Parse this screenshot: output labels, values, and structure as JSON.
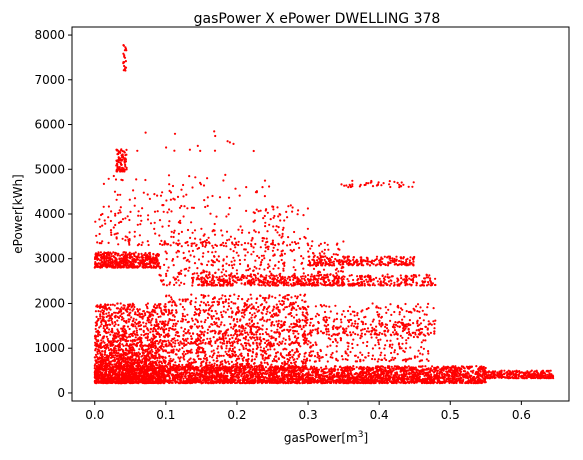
{
  "chart_data": {
    "type": "scatter",
    "title": "gasPower X ePower DWELLING 378",
    "xlabel": "gasPower[m",
    "xlabel_sup": "3",
    "xlabel_end": "]",
    "ylabel": "ePower[kWh]",
    "xlim": [
      -0.032,
      0.667
    ],
    "ylim": [
      -180,
      8180
    ],
    "x_ticks": [
      0.0,
      0.1,
      0.2,
      0.3,
      0.4,
      0.5,
      0.6
    ],
    "x_tick_labels": [
      "0.0",
      "0.1",
      "0.2",
      "0.3",
      "0.4",
      "0.5",
      "0.6"
    ],
    "y_ticks": [
      0,
      1000,
      2000,
      3000,
      4000,
      5000,
      6000,
      7000,
      8000
    ],
    "y_tick_labels": [
      "0",
      "1000",
      "2000",
      "3000",
      "4000",
      "5000",
      "6000",
      "7000",
      "8000"
    ],
    "marker_color": "#ff0000",
    "grid": false,
    "clusters": [
      {
        "x": [
          0.0,
          0.55
        ],
        "y": [
          220,
          600
        ],
        "n": 3500
      },
      {
        "x": [
          0.55,
          0.645
        ],
        "y": [
          330,
          500
        ],
        "n": 300
      },
      {
        "x": [
          0.0,
          0.1
        ],
        "y": [
          220,
          2000
        ],
        "n": 1400
      },
      {
        "x": [
          0.0,
          0.3
        ],
        "y": [
          500,
          1100
        ],
        "n": 900
      },
      {
        "x": [
          0.1,
          0.3
        ],
        "y": [
          1100,
          2200
        ],
        "n": 700
      },
      {
        "x": [
          0.0,
          0.09
        ],
        "y": [
          2800,
          3150
        ],
        "n": 500
      },
      {
        "x": [
          0.09,
          0.35
        ],
        "y": [
          2400,
          3400
        ],
        "n": 450
      },
      {
        "x": [
          0.15,
          0.48
        ],
        "y": [
          2400,
          2650
        ],
        "n": 550
      },
      {
        "x": [
          0.3,
          0.45
        ],
        "y": [
          2850,
          3050
        ],
        "n": 250
      },
      {
        "x": [
          0.2,
          0.48
        ],
        "y": [
          1300,
          2000
        ],
        "n": 350
      },
      {
        "x": [
          0.3,
          0.47
        ],
        "y": [
          700,
          1600
        ],
        "n": 250
      },
      {
        "x": [
          0.0,
          0.3
        ],
        "y": [
          3300,
          4200
        ],
        "n": 250
      },
      {
        "x": [
          0.03,
          0.045
        ],
        "y": [
          4950,
          5450
        ],
        "n": 90
      },
      {
        "x": [
          0.04,
          0.045
        ],
        "y": [
          7200,
          7800
        ],
        "n": 20
      },
      {
        "x": [
          0.0,
          0.25
        ],
        "y": [
          4300,
          4900
        ],
        "n": 60
      },
      {
        "x": [
          0.34,
          0.45
        ],
        "y": [
          4600,
          4750
        ],
        "n": 40
      },
      {
        "x": [
          0.05,
          0.23
        ],
        "y": [
          5400,
          6200
        ],
        "n": 15
      }
    ]
  }
}
